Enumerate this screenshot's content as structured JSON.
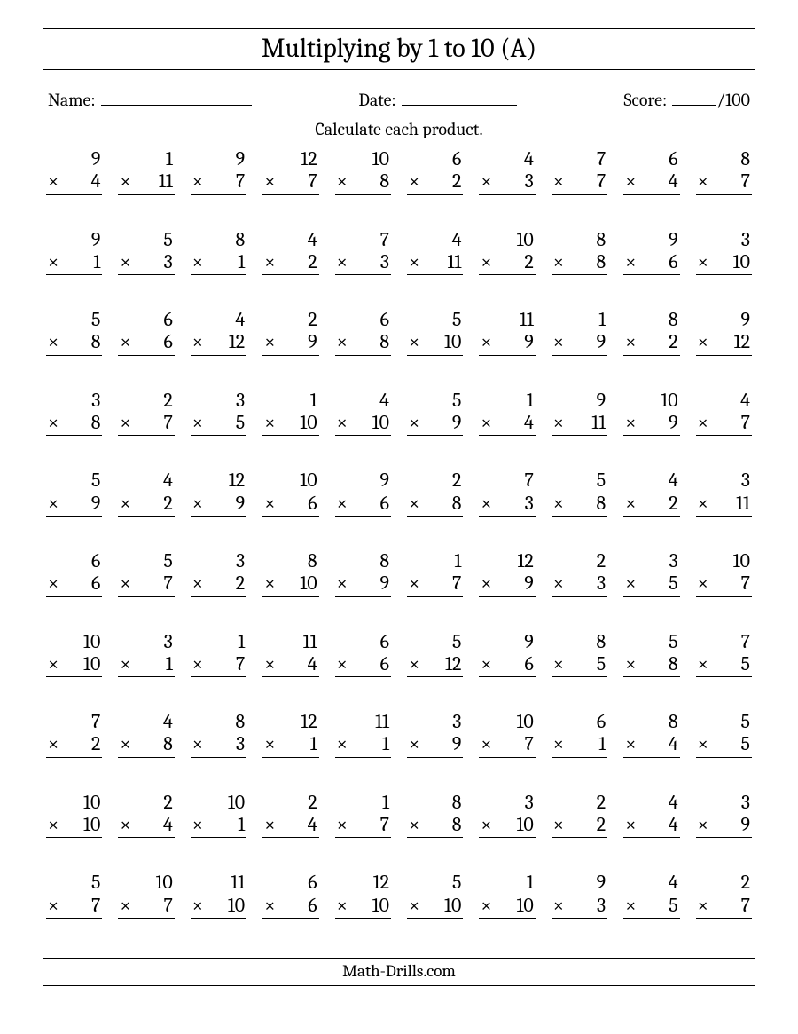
{
  "title": "Multiplying by 1 to 10 (A)",
  "labels": {
    "name": "Name:",
    "date": "Date:",
    "score": "Score:",
    "score_total": "/100"
  },
  "instruction": "Calculate each product.",
  "operator": "×",
  "footer": "Math-Drills.com",
  "layout": {
    "columns": 10,
    "rows": 10,
    "title_fontsize": 30,
    "body_fontsize": 20,
    "problem_fontsize": 22,
    "border_color": "#000000",
    "background_color": "#ffffff",
    "text_color": "#000000"
  },
  "problems": [
    [
      9,
      4
    ],
    [
      1,
      11
    ],
    [
      9,
      7
    ],
    [
      12,
      7
    ],
    [
      10,
      8
    ],
    [
      6,
      2
    ],
    [
      4,
      3
    ],
    [
      7,
      7
    ],
    [
      6,
      4
    ],
    [
      8,
      7
    ],
    [
      9,
      1
    ],
    [
      5,
      3
    ],
    [
      8,
      1
    ],
    [
      4,
      2
    ],
    [
      7,
      3
    ],
    [
      4,
      11
    ],
    [
      10,
      2
    ],
    [
      8,
      8
    ],
    [
      9,
      6
    ],
    [
      3,
      10
    ],
    [
      5,
      8
    ],
    [
      6,
      6
    ],
    [
      4,
      12
    ],
    [
      2,
      9
    ],
    [
      6,
      8
    ],
    [
      5,
      10
    ],
    [
      11,
      9
    ],
    [
      1,
      9
    ],
    [
      8,
      2
    ],
    [
      9,
      12
    ],
    [
      3,
      8
    ],
    [
      2,
      7
    ],
    [
      3,
      5
    ],
    [
      1,
      10
    ],
    [
      4,
      10
    ],
    [
      5,
      9
    ],
    [
      1,
      4
    ],
    [
      9,
      11
    ],
    [
      10,
      9
    ],
    [
      4,
      7
    ],
    [
      5,
      9
    ],
    [
      4,
      2
    ],
    [
      12,
      9
    ],
    [
      10,
      6
    ],
    [
      9,
      6
    ],
    [
      2,
      8
    ],
    [
      7,
      3
    ],
    [
      5,
      8
    ],
    [
      4,
      2
    ],
    [
      3,
      11
    ],
    [
      6,
      6
    ],
    [
      5,
      7
    ],
    [
      3,
      2
    ],
    [
      8,
      10
    ],
    [
      8,
      9
    ],
    [
      1,
      7
    ],
    [
      12,
      9
    ],
    [
      2,
      3
    ],
    [
      3,
      5
    ],
    [
      10,
      7
    ],
    [
      10,
      10
    ],
    [
      3,
      1
    ],
    [
      1,
      7
    ],
    [
      11,
      4
    ],
    [
      6,
      6
    ],
    [
      5,
      12
    ],
    [
      9,
      6
    ],
    [
      8,
      5
    ],
    [
      5,
      8
    ],
    [
      7,
      5
    ],
    [
      7,
      2
    ],
    [
      4,
      8
    ],
    [
      8,
      3
    ],
    [
      12,
      1
    ],
    [
      11,
      1
    ],
    [
      3,
      9
    ],
    [
      10,
      7
    ],
    [
      6,
      1
    ],
    [
      8,
      4
    ],
    [
      5,
      5
    ],
    [
      10,
      10
    ],
    [
      2,
      4
    ],
    [
      10,
      1
    ],
    [
      2,
      4
    ],
    [
      1,
      7
    ],
    [
      8,
      8
    ],
    [
      3,
      10
    ],
    [
      2,
      2
    ],
    [
      4,
      4
    ],
    [
      3,
      9
    ],
    [
      5,
      7
    ],
    [
      10,
      7
    ],
    [
      11,
      10
    ],
    [
      6,
      6
    ],
    [
      12,
      10
    ],
    [
      5,
      10
    ],
    [
      1,
      10
    ],
    [
      9,
      3
    ],
    [
      4,
      5
    ],
    [
      2,
      7
    ]
  ]
}
